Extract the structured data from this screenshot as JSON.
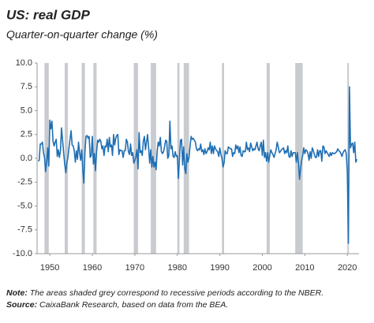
{
  "chart_data": {
    "type": "line",
    "title": "US: real GDP",
    "subtitle": "Quarter-on-quarter change (%)",
    "note_label": "Note:",
    "note": "The areas shaded grey correspond to recessive periods according to the NBER.",
    "source_label": "Source:",
    "source": "CaixaBank Research, based on data from the BEA.",
    "color": "#1f6fb4",
    "recession_color": "#c8cbcf",
    "xlim": [
      1947,
      2022.75
    ],
    "xticks": [
      1950,
      1960,
      1970,
      1980,
      1990,
      2000,
      2010,
      2020
    ],
    "ylim": [
      -10,
      10
    ],
    "yticks": [
      {
        "value": 10,
        "label": "10.0"
      },
      7.5,
      {
        "value": 5,
        "label": "5.0"
      },
      2.5,
      {
        "value": 0,
        "label": "0.0"
      },
      -2.5,
      {
        "value": -5,
        "label": "-5.0"
      },
      -7.5,
      {
        "value": -10,
        "label": "-10.0"
      }
    ],
    "recessions": [
      [
        1948.75,
        1949.75
      ],
      [
        1953.5,
        1954.25
      ],
      [
        1957.5,
        1958.25
      ],
      [
        1960.25,
        1961
      ],
      [
        1969.75,
        1970.75
      ],
      [
        1973.75,
        1975
      ],
      [
        1980,
        1980.5
      ],
      [
        1981.5,
        1982.75
      ],
      [
        1990.5,
        1991
      ],
      [
        2001,
        2001.75
      ],
      [
        2007.75,
        2009.5
      ],
      [
        2020,
        2020.25
      ]
    ],
    "x": [
      1947.25,
      1947.5,
      1947.75,
      1948,
      1948.25,
      1948.5,
      1948.75,
      1949,
      1949.25,
      1949.5,
      1949.75,
      1950,
      1950.25,
      1950.5,
      1950.75,
      1951,
      1951.25,
      1951.5,
      1951.75,
      1952,
      1952.25,
      1952.5,
      1952.75,
      1953,
      1953.25,
      1953.5,
      1953.75,
      1954,
      1954.25,
      1954.5,
      1954.75,
      1955,
      1955.25,
      1955.5,
      1955.75,
      1956,
      1956.25,
      1956.5,
      1956.75,
      1957,
      1957.25,
      1957.5,
      1957.75,
      1958,
      1958.25,
      1958.5,
      1958.75,
      1959,
      1959.25,
      1959.5,
      1959.75,
      1960,
      1960.25,
      1960.5,
      1960.75,
      1961,
      1961.25,
      1961.5,
      1961.75,
      1962,
      1962.25,
      1962.5,
      1962.75,
      1963,
      1963.25,
      1963.5,
      1963.75,
      1964,
      1964.25,
      1964.5,
      1964.75,
      1965,
      1965.25,
      1965.5,
      1965.75,
      1966,
      1966.25,
      1966.5,
      1966.75,
      1967,
      1967.25,
      1967.5,
      1967.75,
      1968,
      1968.25,
      1968.5,
      1968.75,
      1969,
      1969.25,
      1969.5,
      1969.75,
      1970,
      1970.25,
      1970.5,
      1970.75,
      1971,
      1971.25,
      1971.5,
      1971.75,
      1972,
      1972.25,
      1972.5,
      1972.75,
      1973,
      1973.25,
      1973.5,
      1973.75,
      1974,
      1974.25,
      1974.5,
      1974.75,
      1975,
      1975.25,
      1975.5,
      1975.75,
      1976,
      1976.25,
      1976.5,
      1976.75,
      1977,
      1977.25,
      1977.5,
      1977.75,
      1978,
      1978.25,
      1978.5,
      1978.75,
      1979,
      1979.25,
      1979.5,
      1979.75,
      1980,
      1980.25,
      1980.5,
      1980.75,
      1981,
      1981.25,
      1981.5,
      1981.75,
      1982,
      1982.25,
      1982.5,
      1982.75,
      1983,
      1983.25,
      1983.5,
      1983.75,
      1984,
      1984.25,
      1984.5,
      1984.75,
      1985,
      1985.25,
      1985.5,
      1985.75,
      1986,
      1986.25,
      1986.5,
      1986.75,
      1987,
      1987.25,
      1987.5,
      1987.75,
      1988,
      1988.25,
      1988.5,
      1988.75,
      1989,
      1989.25,
      1989.5,
      1989.75,
      1990,
      1990.25,
      1990.5,
      1990.75,
      1991,
      1991.25,
      1991.5,
      1991.75,
      1992,
      1992.25,
      1992.5,
      1992.75,
      1993,
      1993.25,
      1993.5,
      1993.75,
      1994,
      1994.25,
      1994.5,
      1994.75,
      1995,
      1995.25,
      1995.5,
      1995.75,
      1996,
      1996.25,
      1996.5,
      1996.75,
      1997,
      1997.25,
      1997.5,
      1997.75,
      1998,
      1998.25,
      1998.5,
      1998.75,
      1999,
      1999.25,
      1999.5,
      1999.75,
      2000,
      2000.25,
      2000.5,
      2000.75,
      2001,
      2001.25,
      2001.5,
      2001.75,
      2002,
      2002.25,
      2002.5,
      2002.75,
      2003,
      2003.25,
      2003.5,
      2003.75,
      2004,
      2004.25,
      2004.5,
      2004.75,
      2005,
      2005.25,
      2005.5,
      2005.75,
      2006,
      2006.25,
      2006.5,
      2006.75,
      2007,
      2007.25,
      2007.5,
      2007.75,
      2008,
      2008.25,
      2008.5,
      2008.75,
      2009,
      2009.25,
      2009.5,
      2009.75,
      2010,
      2010.25,
      2010.5,
      2010.75,
      2011,
      2011.25,
      2011.5,
      2011.75,
      2012,
      2012.25,
      2012.5,
      2012.75,
      2013,
      2013.25,
      2013.5,
      2013.75,
      2014,
      2014.25,
      2014.5,
      2014.75,
      2015,
      2015.25,
      2015.5,
      2015.75,
      2016,
      2016.25,
      2016.5,
      2016.75,
      2017,
      2017.25,
      2017.5,
      2017.75,
      2018,
      2018.25,
      2018.5,
      2018.75,
      2019,
      2019.25,
      2019.5,
      2019.75,
      2020,
      2020.25,
      2020.5,
      2020.75,
      2021,
      2021.25,
      2021.5,
      2021.75,
      2022,
      2022.25
    ],
    "values": [
      -0.3,
      -0.2,
      1.5,
      1.5,
      1.7,
      0.6,
      0.1,
      -1.4,
      -0.4,
      1.1,
      -0.8,
      4.0,
      3.1,
      3.9,
      1.8,
      1.3,
      1.7,
      2.0,
      0.2,
      0.9,
      0.1,
      0.8,
      3.2,
      1.9,
      0.6,
      -0.6,
      -1.5,
      -0.5,
      0.1,
      1.1,
      2.0,
      2.9,
      1.4,
      1.3,
      0.8,
      -0.4,
      0.8,
      -0.1,
      1.7,
      0.6,
      -0.2,
      0.9,
      -1.1,
      -2.6,
      0.6,
      2.3,
      2.4,
      2.1,
      2.3,
      0.1,
      0.3,
      2.3,
      -0.6,
      0.5,
      -1.3,
      0.7,
      1.9,
      1.7,
      2.0,
      1.8,
      1.0,
      1.3,
      0.3,
      1.3,
      1.2,
      2.0,
      0.7,
      2.2,
      1.2,
      1.4,
      0.3,
      2.5,
      1.4,
      2.1,
      2.4,
      2.5,
      0.4,
      0.9,
      0.8,
      0.8,
      0.1,
      0.8,
      0.8,
      2.0,
      1.7,
      0.7,
      0.4,
      1.5,
      0.3,
      0.6,
      -0.5,
      -0.2,
      0.2,
      0.9,
      -1.1,
      2.7,
      0.6,
      0.8,
      0.3,
      1.8,
      2.3,
      0.9,
      1.7,
      2.5,
      1.1,
      -0.5,
      0.9,
      -0.9,
      0.2,
      -0.9,
      -0.4,
      -1.2,
      0.7,
      1.7,
      1.3,
      2.2,
      0.7,
      0.5,
      0.7,
      1.2,
      1.9,
      1.8,
      0.0,
      0.3,
      3.9,
      1.0,
      1.3,
      0.2,
      0.1,
      0.7,
      0.2,
      0.3,
      -2.1,
      -0.1,
      1.9,
      2.0,
      -0.7,
      1.2,
      -1.1,
      -1.6,
      0.5,
      -0.4,
      0.1,
      1.3,
      2.3,
      2.0,
      2.1,
      1.9,
      1.7,
      1.0,
      0.8,
      1.0,
      0.9,
      1.5,
      0.7,
      0.9,
      0.4,
      1.0,
      0.5,
      0.7,
      1.1,
      0.9,
      1.7,
      0.5,
      1.3,
      0.5,
      1.3,
      1.0,
      0.8,
      0.7,
      0.2,
      1.1,
      0.4,
      0.0,
      -0.9,
      -0.5,
      0.8,
      0.5,
      0.5,
      1.2,
      1.1,
      1.0,
      1.0,
      0.2,
      0.6,
      0.5,
      1.4,
      1.0,
      1.3,
      0.6,
      1.2,
      0.3,
      0.2,
      0.8,
      0.7,
      0.7,
      1.7,
      0.9,
      1.1,
      0.7,
      1.6,
      1.2,
      0.8,
      1.0,
      0.9,
      1.3,
      1.7,
      1.0,
      0.8,
      1.3,
      1.7,
      0.3,
      1.9,
      0.1,
      0.6,
      -0.3,
      0.6,
      -0.4,
      0.3,
      0.9,
      0.6,
      0.4,
      0.1,
      0.5,
      0.9,
      1.7,
      1.2,
      0.6,
      0.7,
      0.9,
      1.0,
      1.1,
      0.5,
      0.8,
      0.6,
      1.3,
      0.2,
      0.1,
      0.8,
      0.2,
      0.6,
      0.6,
      0.6,
      -0.4,
      0.6,
      -0.5,
      -2.2,
      -1.1,
      -0.2,
      0.3,
      1.1,
      0.5,
      0.9,
      0.8,
      0.5,
      -0.2,
      0.7,
      0.0,
      1.1,
      0.8,
      0.4,
      0.1,
      0.1,
      0.9,
      0.2,
      0.8,
      0.8,
      -0.3,
      1.3,
      1.2,
      0.5,
      0.8,
      0.6,
      0.4,
      0.2,
      0.6,
      0.3,
      0.6,
      0.5,
      0.5,
      0.6,
      0.7,
      1.0,
      0.8,
      0.7,
      0.5,
      0.2,
      0.6,
      0.8,
      0.9,
      0.5,
      -1.4,
      -8.9,
      7.5,
      1.1,
      1.5,
      1.6,
      0.6,
      1.7,
      -0.4,
      -0.1
    ]
  }
}
